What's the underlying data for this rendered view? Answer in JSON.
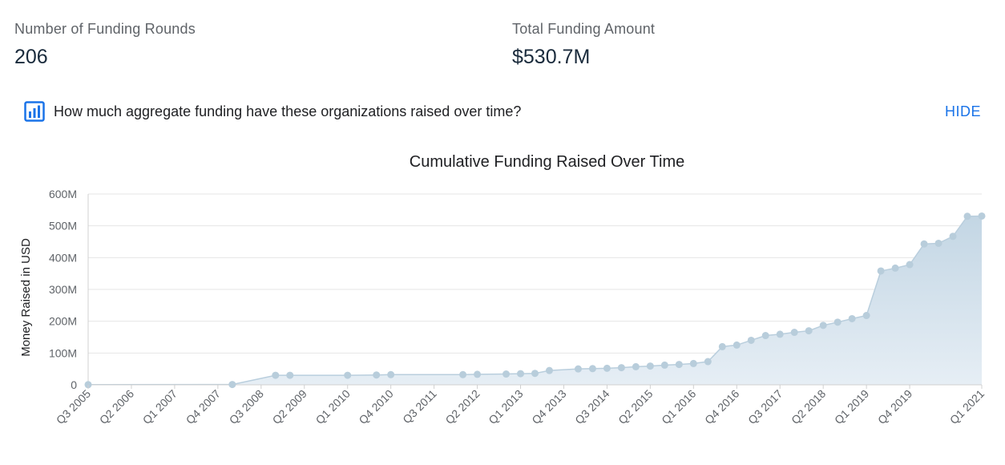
{
  "stats": {
    "rounds_label": "Number of Funding Rounds",
    "rounds_value": "206",
    "total_label": "Total Funding Amount",
    "total_value": "$530.7M"
  },
  "question": {
    "text": "How much aggregate funding have these organizations raised over time?",
    "hide_label": "HIDE",
    "icon": "bar-chart-icon"
  },
  "colors": {
    "accent": "#1a73e8",
    "area_fill": "#cfdde8",
    "area_line": "#b9cedd",
    "point": "#b8cddb",
    "grid": "#e6e6e6"
  },
  "chart_data": {
    "type": "area",
    "title": "Cumulative Funding Raised Over Time",
    "xlabel": "",
    "ylabel": "Money Raised in USD",
    "ylim": [
      0,
      600
    ],
    "y_unit": "M",
    "y_ticks": [
      "0",
      "100M",
      "200M",
      "300M",
      "400M",
      "500M",
      "600M"
    ],
    "x_ticks": [
      "Q3 2005",
      "Q2 2006",
      "Q1 2007",
      "Q4 2007",
      "Q3 2008",
      "Q2 2009",
      "Q1 2010",
      "Q4 2010",
      "Q3 2011",
      "Q2 2012",
      "Q1 2013",
      "Q4 2013",
      "Q3 2014",
      "Q2 2015",
      "Q1 2016",
      "Q4 2016",
      "Q3 2017",
      "Q2 2018",
      "Q1 2019",
      "Q4 2019",
      "Q1 2021"
    ],
    "x_ticks_at": [
      0,
      3,
      6,
      9,
      12,
      15,
      18,
      21,
      24,
      27,
      30,
      33,
      36,
      39,
      42,
      45,
      48,
      51,
      54,
      57,
      62
    ],
    "x_count": 63,
    "series": [
      {
        "name": "Cumulative Funding",
        "points": [
          {
            "q": 0,
            "y": 0.5
          },
          {
            "q": 10,
            "y": 1
          },
          {
            "q": 13,
            "y": 30
          },
          {
            "q": 14,
            "y": 30
          },
          {
            "q": 18,
            "y": 30
          },
          {
            "q": 20,
            "y": 31
          },
          {
            "q": 21,
            "y": 32
          },
          {
            "q": 26,
            "y": 32
          },
          {
            "q": 27,
            "y": 33
          },
          {
            "q": 29,
            "y": 34
          },
          {
            "q": 30,
            "y": 35
          },
          {
            "q": 31,
            "y": 36
          },
          {
            "q": 32,
            "y": 45
          },
          {
            "q": 34,
            "y": 50
          },
          {
            "q": 35,
            "y": 51
          },
          {
            "q": 36,
            "y": 52
          },
          {
            "q": 37,
            "y": 54
          },
          {
            "q": 38,
            "y": 57
          },
          {
            "q": 39,
            "y": 59
          },
          {
            "q": 40,
            "y": 62
          },
          {
            "q": 41,
            "y": 64
          },
          {
            "q": 42,
            "y": 67
          },
          {
            "q": 43,
            "y": 73
          },
          {
            "q": 44,
            "y": 120
          },
          {
            "q": 45,
            "y": 125
          },
          {
            "q": 46,
            "y": 140
          },
          {
            "q": 47,
            "y": 155
          },
          {
            "q": 48,
            "y": 159
          },
          {
            "q": 49,
            "y": 165
          },
          {
            "q": 50,
            "y": 170
          },
          {
            "q": 51,
            "y": 187
          },
          {
            "q": 52,
            "y": 197
          },
          {
            "q": 53,
            "y": 208
          },
          {
            "q": 54,
            "y": 218
          },
          {
            "q": 55,
            "y": 358
          },
          {
            "q": 56,
            "y": 367
          },
          {
            "q": 57,
            "y": 378
          },
          {
            "q": 58,
            "y": 443
          },
          {
            "q": 59,
            "y": 445
          },
          {
            "q": 60,
            "y": 467
          },
          {
            "q": 61,
            "y": 530
          },
          {
            "q": 62,
            "y": 530.7
          }
        ]
      }
    ]
  }
}
